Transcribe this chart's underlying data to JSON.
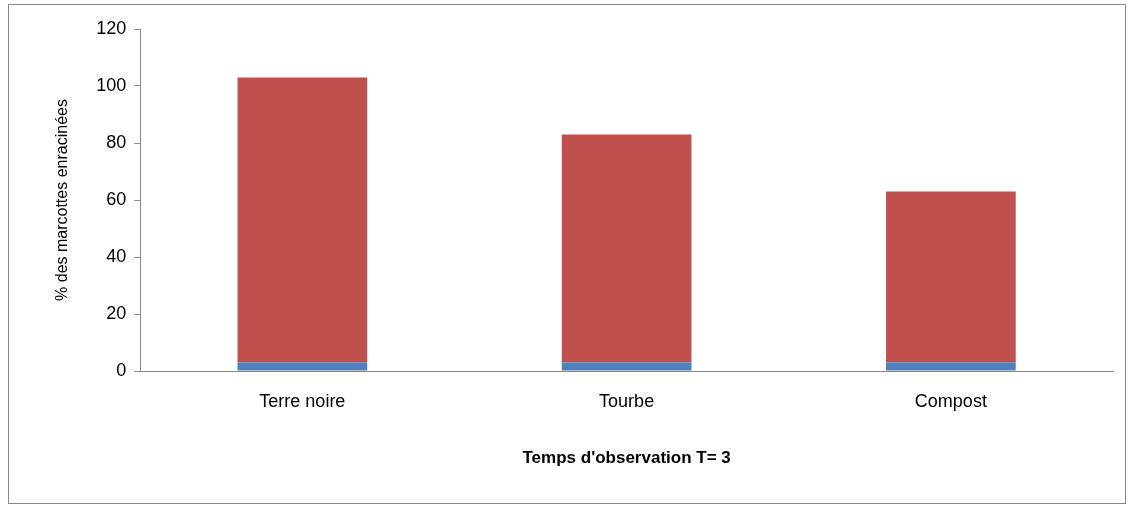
{
  "chart_data": {
    "type": "bar",
    "stacked": true,
    "xlabel": "Temps d'observation T= 3",
    "ylabel": "% des marcottes enracinées",
    "categories": [
      "Terre noire",
      "Tourbe",
      "Compost"
    ],
    "series": [
      {
        "color": "#4f81bd",
        "values": [
          3,
          3,
          3
        ]
      },
      {
        "color": "#c0504d",
        "values": [
          100,
          80,
          60
        ]
      }
    ],
    "ylim": [
      0,
      120
    ],
    "yticks": [
      0,
      20,
      40,
      60,
      80,
      100,
      120
    ],
    "grid": false,
    "legend": false
  }
}
